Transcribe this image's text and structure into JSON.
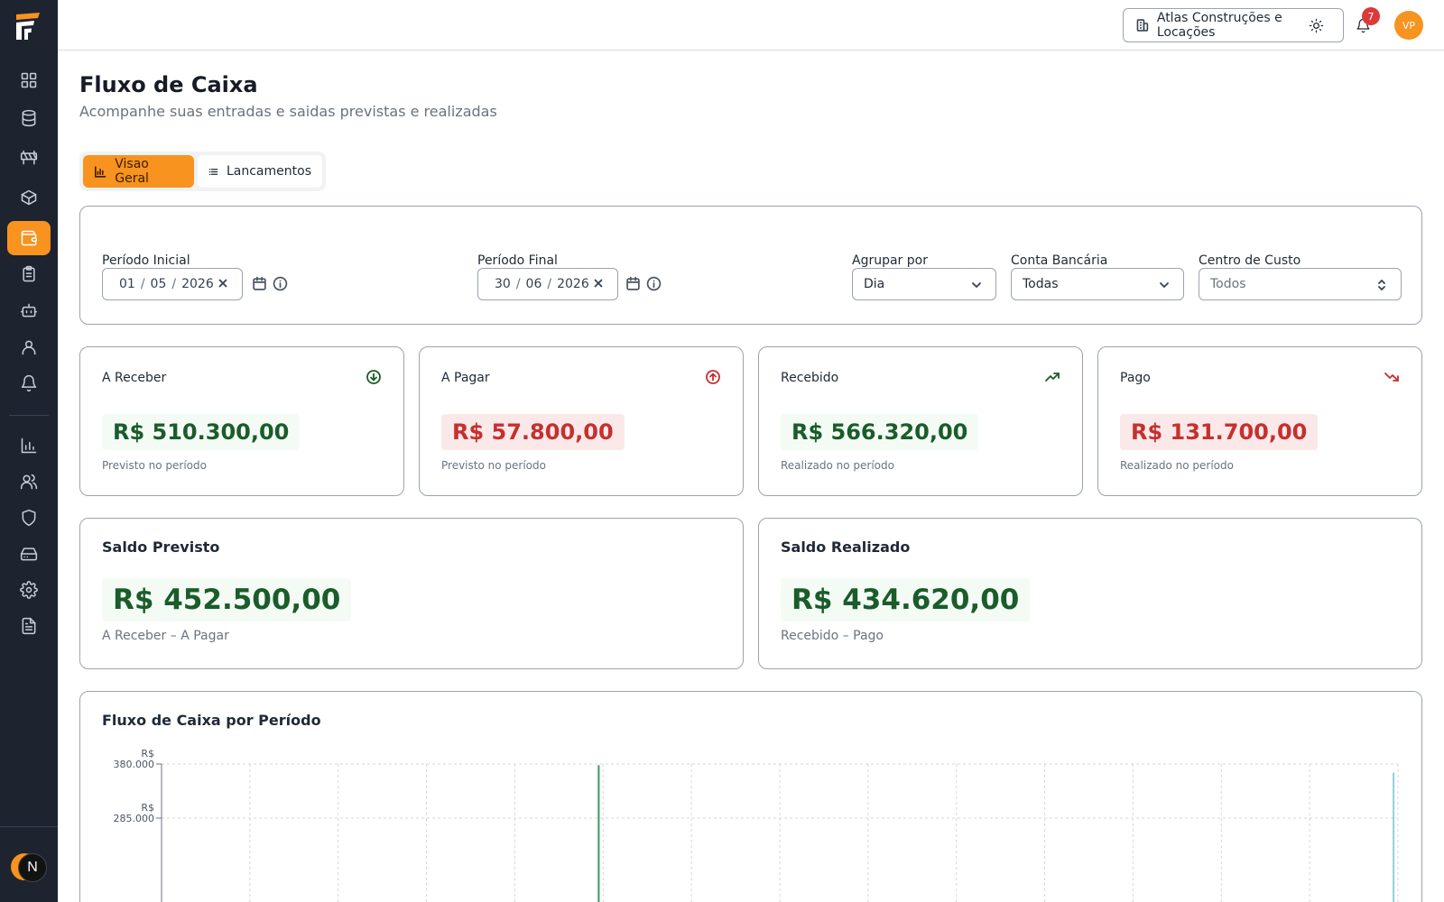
{
  "header": {
    "company": "Atlas Construções e Locações",
    "notification_count": "7",
    "user_initials": "VP"
  },
  "sidebar": {
    "items": [
      "dashboard-icon",
      "database-icon",
      "barrier-icon",
      "box-icon",
      "wallet-icon",
      "clipboard-icon",
      "robot-icon",
      "user-icon",
      "bell-icon",
      "chart-icon",
      "users-icon",
      "shield-icon",
      "storage-icon",
      "gear-icon",
      "document-icon"
    ],
    "active": "wallet-icon",
    "user_badge": "N"
  },
  "page": {
    "title": "Fluxo de Caixa",
    "subtitle": "Acompanhe suas entradas e saidas previstas e realizadas"
  },
  "tabs": [
    {
      "label": "Visao Geral",
      "active": true
    },
    {
      "label": "Lancamentos",
      "active": false
    }
  ],
  "filters": {
    "start": {
      "label": "Período Inicial",
      "day": "01",
      "month": "05",
      "year": "2026"
    },
    "end": {
      "label": "Período Final",
      "day": "30",
      "month": "06",
      "year": "2026"
    },
    "group": {
      "label": "Agrupar por",
      "value": "Dia"
    },
    "account": {
      "label": "Conta Bancária",
      "value": "Todas"
    },
    "cost_center": {
      "label": "Centro de Custo",
      "value": "Todos"
    }
  },
  "stats": [
    {
      "label": "A Receber",
      "value": "R$ 510.300,00",
      "foot": "Previsto no período",
      "tone": "positive",
      "icon": "arrow-down-circle-icon",
      "icon_color": "#1a5c2a"
    },
    {
      "label": "A Pagar",
      "value": "R$ 57.800,00",
      "foot": "Previsto no período",
      "tone": "negative",
      "icon": "arrow-up-circle-icon",
      "icon_color": "#c53030"
    },
    {
      "label": "Recebido",
      "value": "R$ 566.320,00",
      "foot": "Realizado no período",
      "tone": "positive",
      "icon": "trending-up-icon",
      "icon_color": "#1a5c2a"
    },
    {
      "label": "Pago",
      "value": "R$ 131.700,00",
      "foot": "Realizado no período",
      "tone": "negative",
      "icon": "trending-down-icon",
      "icon_color": "#c53030"
    }
  ],
  "balances": [
    {
      "label": "Saldo Previsto",
      "value": "R$ 452.500,00",
      "foot": "A Receber – A Pagar"
    },
    {
      "label": "Saldo Realizado",
      "value": "R$ 434.620,00",
      "foot": "Recebido – Pago"
    }
  ],
  "chart": {
    "title": "Fluxo de Caixa por Período"
  },
  "chart_data": {
    "type": "bar",
    "title": "Fluxo de Caixa por Período",
    "ylim": [
      0,
      380000
    ],
    "y_ticks": [
      {
        "prefix": "R$",
        "value": "380.000"
      },
      {
        "prefix": "R$",
        "value": "285.000"
      }
    ],
    "grid": true,
    "series": [
      {
        "color": "#3a9a5b",
        "values_note": "partially visible",
        "points": [
          {
            "x_index": 4,
            "value": 378000
          }
        ]
      },
      {
        "color": "#8fd0e0",
        "points": [
          {
            "x_index": 13,
            "value": 365000
          }
        ]
      }
    ],
    "categories_count": 14
  },
  "colors": {
    "accent": "#f7931e",
    "positive": "#1a5c2a",
    "negative": "#c53030",
    "sidebar_bg": "#1e2330"
  }
}
